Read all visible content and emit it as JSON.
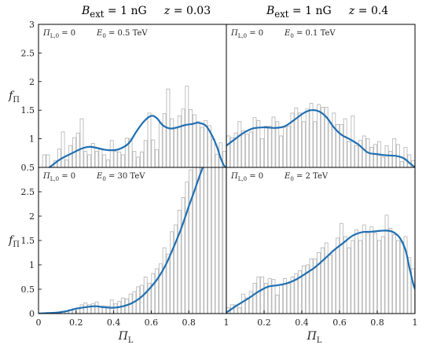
{
  "titles": [
    {
      "b_sym": "B",
      "b_sub": "ext",
      "b_val": " = 1 nG",
      "z_sym": "z",
      "z_val": " = 0.03"
    },
    {
      "b_sym": "B",
      "b_sub": "ext",
      "b_val": " = 1 nG",
      "z_sym": "z",
      "z_val": " = 0.4"
    }
  ],
  "ylabel": {
    "sym": "f",
    "sub": "Π"
  },
  "xlabel": {
    "sym": "Π",
    "sub": "L"
  },
  "colors": {
    "curve": "#1f6fb2",
    "bar_edge": "#b9b9b9",
    "axis": "#000000"
  },
  "chart_data": [
    {
      "type": "bar+line",
      "panel": "top-left",
      "annotation": {
        "pi0_sym": "Π",
        "pi0_sub": "L,0",
        "pi0_val": " = 0",
        "e0_sym": "E",
        "e0_sub": "0",
        "e0_val": " = 0.5 TeV"
      },
      "xlim": [
        0,
        1
      ],
      "ylim": [
        0.5,
        3.0
      ],
      "yticks": [
        {
          "v": 0.5,
          "label": "0.5"
        },
        {
          "v": 1,
          "label": "1"
        },
        {
          "v": 1.5,
          "label": "1.5"
        },
        {
          "v": 2,
          "label": "2"
        },
        {
          "v": 2.5,
          "label": "2.5"
        },
        {
          "v": 3,
          "label": "3"
        }
      ],
      "xticks": [],
      "bars": [
        0.45,
        0.72,
        0.72,
        0.45,
        0.62,
        0.82,
        1.12,
        0.63,
        0.88,
        1.02,
        1.1,
        1.35,
        0.78,
        0.72,
        0.92,
        0.78,
        0.83,
        0.72,
        0.63,
        0.97,
        0.78,
        0.77,
        0.72,
        1.01,
        1.0,
        0.78,
        0.68,
        0.77,
        0.97,
        1.45,
        0.98,
        0.81,
        1.28,
        1.44,
        1.87,
        1.35,
        1.2,
        1.4,
        1.52,
        1.92,
        1.51,
        1.42,
        1.3,
        1.2,
        1.32,
        1.23,
        1.0,
        0.73,
        0.93,
        0.78
      ],
      "curve_x": [
        0,
        0.03,
        0.07,
        0.12,
        0.18,
        0.23,
        0.27,
        0.31,
        0.35,
        0.39,
        0.43,
        0.48,
        0.52,
        0.56,
        0.6,
        0.63,
        0.66,
        0.7,
        0.74,
        0.78,
        0.82,
        0.85,
        0.89,
        0.92,
        0.95,
        0.97,
        0.99,
        1.0
      ],
      "curve_y": [
        0.23,
        0.42,
        0.53,
        0.65,
        0.75,
        0.83,
        0.86,
        0.84,
        0.81,
        0.8,
        0.82,
        0.92,
        1.12,
        1.3,
        1.4,
        1.36,
        1.24,
        1.18,
        1.2,
        1.24,
        1.26,
        1.28,
        1.23,
        1.08,
        0.86,
        0.66,
        0.52,
        0.5
      ]
    },
    {
      "type": "bar+line",
      "panel": "top-right",
      "annotation": {
        "pi0_sym": "Π",
        "pi0_sub": "L,0",
        "pi0_val": " = 0",
        "e0_sym": "E",
        "e0_sub": "0",
        "e0_val": " = 0.1 TeV"
      },
      "xlim": [
        0,
        1
      ],
      "ylim": [
        0.5,
        3.0
      ],
      "yticks": [],
      "xticks": [],
      "bars": [
        1.05,
        1.02,
        1.1,
        1.3,
        1.14,
        1.08,
        1.12,
        1.37,
        1.32,
        1.0,
        1.22,
        1.22,
        1.38,
        1.3,
        1.05,
        1.2,
        1.22,
        1.45,
        1.54,
        1.45,
        1.3,
        1.52,
        1.62,
        1.3,
        1.6,
        1.55,
        1.55,
        1.28,
        1.45,
        1.25,
        1.25,
        1.35,
        0.95,
        1.4,
        0.88,
        0.97,
        1.05,
        1.0,
        0.85,
        0.9,
        0.95,
        0.68,
        0.88,
        0.78,
        1.0,
        0.9,
        0.6,
        0.85,
        0.72,
        0.62
      ],
      "curve_x": [
        0,
        0.04,
        0.09,
        0.14,
        0.2,
        0.26,
        0.31,
        0.36,
        0.41,
        0.45,
        0.49,
        0.53,
        0.57,
        0.61,
        0.65,
        0.7,
        0.75,
        0.8,
        0.85,
        0.9,
        0.94,
        0.97,
        1.0
      ],
      "curve_y": [
        0.88,
        0.98,
        1.1,
        1.18,
        1.2,
        1.19,
        1.22,
        1.33,
        1.45,
        1.5,
        1.48,
        1.38,
        1.2,
        1.07,
        1.0,
        0.9,
        0.76,
        0.73,
        0.71,
        0.7,
        0.66,
        0.58,
        0.5
      ]
    },
    {
      "type": "bar+line",
      "panel": "bottom-left",
      "annotation": {
        "pi0_sym": "Π",
        "pi0_sub": "L,0",
        "pi0_val": " = 0",
        "e0_sym": "E",
        "e0_sub": "0",
        "e0_val": " = 30 TeV"
      },
      "xlim": [
        0,
        1
      ],
      "ylim": [
        0,
        3.0
      ],
      "yticks": [
        {
          "v": 0,
          "label": "0"
        },
        {
          "v": 0.5,
          "label": "0.5"
        },
        {
          "v": 1,
          "label": "1"
        },
        {
          "v": 1.5,
          "label": "1.5"
        },
        {
          "v": 2,
          "label": "2"
        },
        {
          "v": 2.5,
          "label": "2.5"
        }
      ],
      "xticks": [
        {
          "v": 0,
          "label": "0"
        },
        {
          "v": 0.2,
          "label": "0.2"
        },
        {
          "v": 0.4,
          "label": "0.4"
        },
        {
          "v": 0.6,
          "label": "0.6"
        },
        {
          "v": 0.8,
          "label": "0.8"
        },
        {
          "v": 1,
          "label": "1"
        }
      ],
      "bars": [
        0.01,
        0.01,
        0.02,
        0.02,
        0.02,
        0.03,
        0.05,
        0.06,
        0.08,
        0.1,
        0.12,
        0.18,
        0.22,
        0.18,
        0.2,
        0.24,
        0.14,
        0.16,
        0.15,
        0.28,
        0.2,
        0.25,
        0.32,
        0.3,
        0.4,
        0.45,
        0.55,
        0.58,
        0.75,
        0.62,
        0.82,
        0.92,
        1.02,
        1.35,
        1.22,
        1.68,
        1.82,
        2.12,
        2.38,
        2.7,
        2.95,
        3.0,
        3.0,
        3.0,
        3.0,
        3.0,
        3.0,
        3.0,
        3.0,
        3.0
      ],
      "curve_x": [
        0,
        0.05,
        0.1,
        0.15,
        0.2,
        0.25,
        0.3,
        0.35,
        0.4,
        0.45,
        0.5,
        0.55,
        0.6,
        0.64,
        0.68,
        0.72,
        0.76,
        0.8,
        0.83,
        0.86,
        0.88,
        0.9,
        0.93
      ],
      "curve_y": [
        0.0,
        0.01,
        0.02,
        0.05,
        0.1,
        0.13,
        0.15,
        0.13,
        0.12,
        0.15,
        0.22,
        0.35,
        0.55,
        0.75,
        1.02,
        1.37,
        1.75,
        2.2,
        2.52,
        2.85,
        3.05,
        3.2,
        3.5
      ]
    },
    {
      "type": "bar+line",
      "panel": "bottom-right",
      "annotation": {
        "pi0_sym": "Π",
        "pi0_sub": "L,0",
        "pi0_val": " = 0",
        "e0_sym": "E",
        "e0_sub": "0",
        "e0_val": " = 2 TeV"
      },
      "xlim": [
        0,
        1
      ],
      "ylim": [
        0,
        3.0
      ],
      "yticks": [],
      "xticks": [
        {
          "v": 0,
          "label": ""
        },
        {
          "v": 0.2,
          "label": "0.2"
        },
        {
          "v": 0.4,
          "label": "0.4"
        },
        {
          "v": 0.6,
          "label": "0.6"
        },
        {
          "v": 0.8,
          "label": "0.8"
        },
        {
          "v": 1,
          "label": "1"
        }
      ],
      "bars": [
        0.12,
        0.18,
        0.18,
        0.12,
        0.4,
        0.32,
        0.45,
        0.62,
        0.75,
        0.75,
        0.62,
        0.72,
        0.7,
        0.38,
        0.58,
        0.72,
        0.62,
        0.75,
        0.82,
        0.88,
        0.98,
        1.0,
        1.12,
        1.12,
        1.25,
        1.35,
        1.45,
        1.2,
        1.3,
        1.55,
        1.85,
        1.58,
        1.35,
        1.5,
        1.72,
        1.5,
        1.82,
        1.65,
        1.78,
        1.65,
        1.5,
        1.58,
        2.02,
        1.75,
        1.62,
        1.5,
        1.48,
        1.58,
        1.15,
        0.92
      ],
      "curve_x": [
        0,
        0.03,
        0.07,
        0.12,
        0.17,
        0.22,
        0.27,
        0.32,
        0.37,
        0.42,
        0.47,
        0.52,
        0.57,
        0.62,
        0.67,
        0.72,
        0.77,
        0.82,
        0.86,
        0.89,
        0.92,
        0.95,
        0.97,
        0.99,
        1.0
      ],
      "curve_y": [
        0.02,
        0.1,
        0.2,
        0.32,
        0.45,
        0.55,
        0.58,
        0.62,
        0.7,
        0.82,
        0.95,
        1.12,
        1.3,
        1.45,
        1.6,
        1.67,
        1.68,
        1.7,
        1.7,
        1.66,
        1.55,
        1.3,
        0.95,
        0.62,
        0.5
      ]
    }
  ]
}
